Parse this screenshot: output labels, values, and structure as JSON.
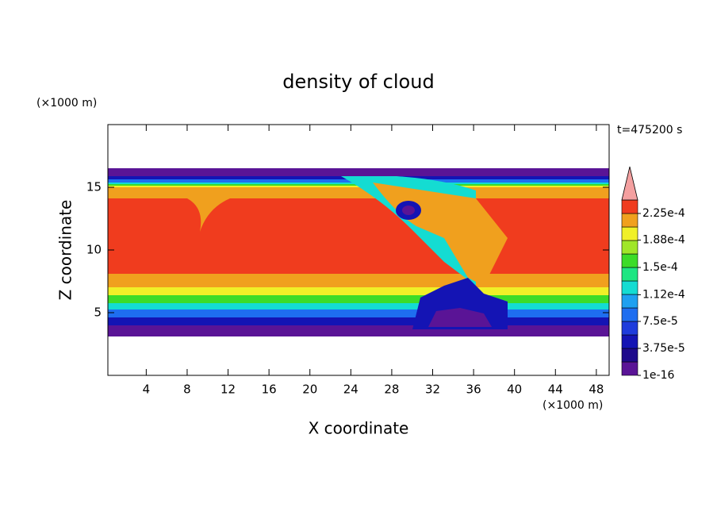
{
  "chart_data": {
    "type": "contour",
    "title": "density of cloud",
    "xlabel": "X coordinate",
    "ylabel": "Z coordinate",
    "xunit": "(×1000 m)",
    "yunit": "(×1000 m)",
    "annotation": "t=475200 s",
    "xlim": [
      0.25,
      49.25
    ],
    "ylim": [
      0,
      20
    ],
    "xticks": [
      4,
      8,
      12,
      16,
      20,
      24,
      28,
      32,
      36,
      40,
      44,
      48
    ],
    "yticks": [
      5,
      10,
      15
    ],
    "colorbar": {
      "levels": [
        {
          "value": 1e-16,
          "label": "1e-16"
        },
        {
          "value": 3.75e-05,
          "label": "3.75e-5"
        },
        {
          "value": 7.5e-05,
          "label": "7.5e-5"
        },
        {
          "value": 0.000112,
          "label": "1.12e-4"
        },
        {
          "value": 0.00015,
          "label": "1.5e-4"
        },
        {
          "value": 0.000188,
          "label": "1.88e-4"
        },
        {
          "value": 0.000225,
          "label": "2.25e-4"
        }
      ],
      "colors": [
        "#5a1496",
        "#1e0a8c",
        "#1414b4",
        "#1e3cdc",
        "#1e6ef0",
        "#1ea0f0",
        "#14dcd2",
        "#1ee682",
        "#3cdc28",
        "#a0e628",
        "#f0f028",
        "#f0a01e",
        "#f03c1e"
      ],
      "overflow_color": "#f4a0a0"
    }
  }
}
